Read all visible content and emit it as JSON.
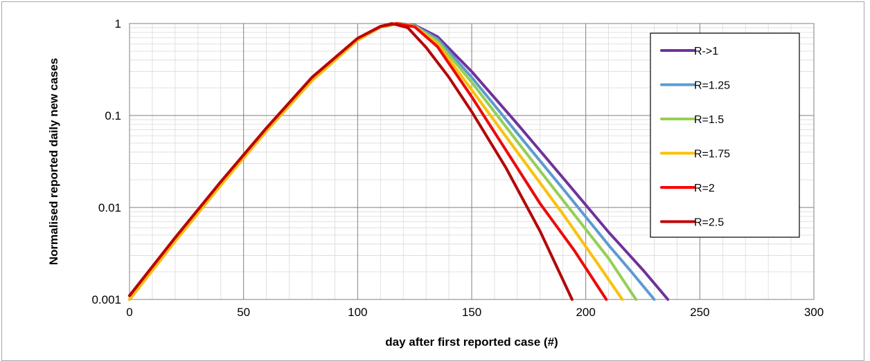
{
  "chart_data": {
    "type": "line",
    "title": "",
    "xlabel": "day after first reported case (#)",
    "ylabel": "Normalised reported daily new cases",
    "xlim": [
      0,
      300
    ],
    "ylim": [
      0.001,
      1
    ],
    "yscale": "log",
    "x_ticks": [
      0,
      50,
      100,
      150,
      200,
      250,
      300
    ],
    "y_ticks": [
      0.001,
      0.01,
      0.1,
      1
    ],
    "x_tick_labels": [
      "0",
      "50",
      "100",
      "150",
      "200",
      "250",
      "300"
    ],
    "y_tick_labels": [
      "0.001",
      "0.01",
      "0.1",
      "1"
    ],
    "grid": true,
    "legend_position": "top-right",
    "series": [
      {
        "name": "R->1",
        "color": "#7030a0",
        "x": [
          0,
          20,
          40,
          60,
          80,
          100,
          110,
          118,
          125,
          135,
          150,
          170,
          190,
          210,
          225,
          236
        ],
        "y": [
          0.001,
          0.0043,
          0.0175,
          0.068,
          0.24,
          0.66,
          0.91,
          1.0,
          0.96,
          0.72,
          0.3,
          0.081,
          0.021,
          0.0054,
          0.0021,
          0.001
        ]
      },
      {
        "name": "R=1.25",
        "color": "#5b9bd5",
        "x": [
          0,
          20,
          40,
          60,
          80,
          100,
          110,
          118,
          125,
          135,
          150,
          170,
          190,
          210,
          220,
          230
        ],
        "y": [
          0.001,
          0.0043,
          0.0175,
          0.068,
          0.24,
          0.66,
          0.91,
          1.0,
          0.95,
          0.68,
          0.26,
          0.064,
          0.016,
          0.0039,
          0.002,
          0.001
        ]
      },
      {
        "name": "R=1.5",
        "color": "#92d050",
        "x": [
          0,
          20,
          40,
          60,
          80,
          100,
          110,
          118,
          125,
          135,
          150,
          170,
          190,
          210,
          222
        ],
        "y": [
          0.001,
          0.0043,
          0.0175,
          0.068,
          0.24,
          0.66,
          0.91,
          1.0,
          0.94,
          0.64,
          0.23,
          0.052,
          0.012,
          0.0028,
          0.001
        ]
      },
      {
        "name": "R=1.75",
        "color": "#ffc000",
        "x": [
          0,
          20,
          40,
          60,
          80,
          100,
          110,
          117,
          125,
          135,
          150,
          170,
          190,
          205,
          216
        ],
        "y": [
          0.001,
          0.0043,
          0.0175,
          0.068,
          0.24,
          0.66,
          0.92,
          1.0,
          0.93,
          0.6,
          0.19,
          0.04,
          0.0085,
          0.0025,
          0.001
        ]
      },
      {
        "name": "R=2",
        "color": "#ff0000",
        "x": [
          0,
          20,
          40,
          60,
          80,
          100,
          110,
          117,
          125,
          135,
          150,
          165,
          180,
          195,
          209
        ],
        "y": [
          0.0011,
          0.0047,
          0.019,
          0.073,
          0.26,
          0.69,
          0.93,
          1.0,
          0.92,
          0.56,
          0.16,
          0.042,
          0.011,
          0.0034,
          0.001
        ]
      },
      {
        "name": "R=2.5",
        "color": "#c00000",
        "x": [
          0,
          20,
          40,
          60,
          80,
          100,
          110,
          115,
          122,
          130,
          140,
          150,
          165,
          180,
          194
        ],
        "y": [
          0.0011,
          0.0047,
          0.019,
          0.073,
          0.26,
          0.69,
          0.93,
          1.0,
          0.9,
          0.55,
          0.26,
          0.11,
          0.027,
          0.0055,
          0.001
        ]
      }
    ]
  }
}
